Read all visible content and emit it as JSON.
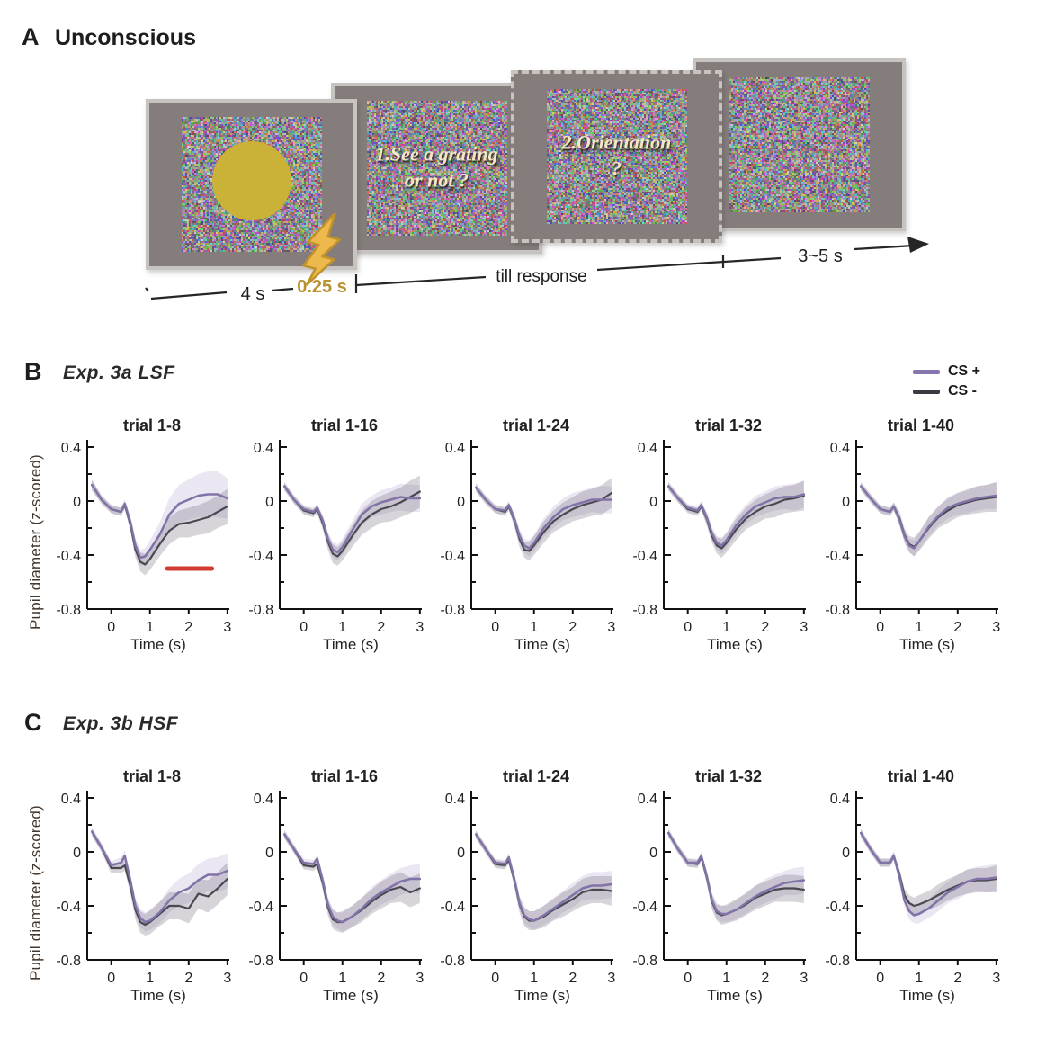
{
  "panel_a": {
    "label": "A",
    "title": "Unconscious",
    "screens": [
      {
        "id": "cs-stimulus",
        "content": "yellow-circle-on-noise"
      },
      {
        "id": "question-1",
        "line1": "1.See a grating",
        "line2": "or not ?"
      },
      {
        "id": "question-2",
        "line1": "2.Orientation",
        "line2": "?"
      },
      {
        "id": "mask-noise",
        "content": "noise-only"
      }
    ],
    "timeline": {
      "t_4s": "4 s",
      "t_025s": "0.25 s",
      "t_till": "till response",
      "t_35s": "3~5 s"
    },
    "colors": {
      "circle": "#c9b237",
      "bolt_fill": "#edb94d",
      "bolt_edge": "#c2922a",
      "gold_text": "#b8922e"
    }
  },
  "legend": {
    "items": [
      {
        "label": "CS +",
        "color": "#8576ad"
      },
      {
        "label": "CS -",
        "color": "#3c3a40"
      }
    ]
  },
  "panel_b": {
    "label": "B",
    "subtitle": "Exp. 3a  LSF"
  },
  "panel_c": {
    "label": "C",
    "subtitle": "Exp. 3b  HSF"
  },
  "chart_data": {
    "type": "line",
    "x_label": "Time (s)",
    "y_label": "Pupil diameter (z-scored)",
    "x": [
      -0.5,
      -0.25,
      0,
      0.25,
      0.35,
      0.5,
      0.625,
      0.75,
      0.875,
      1,
      1.25,
      1.5,
      1.75,
      2,
      2.25,
      2.5,
      2.75,
      3
    ],
    "xticks": [
      0,
      1,
      2,
      3
    ],
    "yticks": [
      0.4,
      0,
      -0.4,
      -0.8
    ],
    "yminor": [
      0.2,
      -0.2,
      -0.6
    ],
    "xlim": [
      -0.62,
      3.05
    ],
    "ylim": [
      -0.8,
      0.4
    ],
    "series_colors": {
      "cs_plus": "#8172a8",
      "cs_minus": "#4a4850",
      "cs_plus_band": "rgba(160,140,195,0.22)",
      "cs_minus_band": "rgba(110,105,118,0.28)",
      "sig_bar": "#d23c30"
    },
    "panels": [
      {
        "panel": "B",
        "experiment": "Exp. 3a LSF",
        "charts": [
          {
            "title": "trial 1-8",
            "cs_plus": [
              0.12,
              0.01,
              -0.06,
              -0.08,
              -0.02,
              -0.16,
              -0.33,
              -0.42,
              -0.41,
              -0.36,
              -0.25,
              -0.1,
              -0.02,
              0.01,
              0.04,
              0.05,
              0.05,
              0.02
            ],
            "cs_plus_band": [
              0.04,
              0.03,
              0.03,
              0.03,
              0.03,
              0.04,
              0.05,
              0.06,
              0.06,
              0.07,
              0.09,
              0.12,
              0.14,
              0.15,
              0.16,
              0.17,
              0.17,
              0.15
            ],
            "cs_minus": [
              0.12,
              0.01,
              -0.06,
              -0.08,
              -0.03,
              -0.18,
              -0.36,
              -0.45,
              -0.47,
              -0.43,
              -0.32,
              -0.22,
              -0.17,
              -0.16,
              -0.14,
              -0.12,
              -0.08,
              -0.04
            ],
            "cs_minus_band": [
              0.04,
              0.03,
              0.03,
              0.03,
              0.03,
              0.05,
              0.06,
              0.07,
              0.08,
              0.08,
              0.09,
              0.1,
              0.1,
              0.11,
              0.11,
              0.12,
              0.12,
              0.13
            ],
            "sig_bar": {
              "x1": 1.45,
              "x2": 2.6,
              "y": -0.5
            }
          },
          {
            "title": "trial 1-16",
            "cs_plus": [
              0.11,
              0.01,
              -0.06,
              -0.08,
              -0.05,
              -0.15,
              -0.28,
              -0.36,
              -0.38,
              -0.34,
              -0.22,
              -0.1,
              -0.04,
              -0.01,
              0.01,
              0.03,
              0.02,
              0.02
            ],
            "cs_plus_band": [
              0.03,
              0.03,
              0.03,
              0.03,
              0.03,
              0.04,
              0.05,
              0.06,
              0.06,
              0.06,
              0.07,
              0.08,
              0.08,
              0.09,
              0.09,
              0.1,
              0.1,
              0.1
            ],
            "cs_minus": [
              0.11,
              0.01,
              -0.07,
              -0.09,
              -0.06,
              -0.17,
              -0.3,
              -0.39,
              -0.41,
              -0.37,
              -0.26,
              -0.16,
              -0.1,
              -0.06,
              -0.04,
              -0.01,
              0.03,
              0.07
            ],
            "cs_minus_band": [
              0.03,
              0.03,
              0.03,
              0.03,
              0.03,
              0.05,
              0.06,
              0.07,
              0.07,
              0.07,
              0.08,
              0.09,
              0.1,
              0.1,
              0.11,
              0.11,
              0.12,
              0.12
            ]
          },
          {
            "title": "trial 1-24",
            "cs_plus": [
              0.1,
              0.01,
              -0.06,
              -0.07,
              -0.03,
              -0.14,
              -0.26,
              -0.33,
              -0.35,
              -0.31,
              -0.2,
              -0.12,
              -0.06,
              -0.03,
              -0.01,
              0.01,
              0.01,
              0.01
            ],
            "cs_plus_band": [
              0.03,
              0.03,
              0.03,
              0.03,
              0.03,
              0.04,
              0.05,
              0.05,
              0.06,
              0.06,
              0.07,
              0.08,
              0.08,
              0.09,
              0.09,
              0.09,
              0.1,
              0.1
            ],
            "cs_minus": [
              0.1,
              0.01,
              -0.06,
              -0.08,
              -0.04,
              -0.15,
              -0.28,
              -0.36,
              -0.37,
              -0.33,
              -0.23,
              -0.15,
              -0.1,
              -0.06,
              -0.03,
              -0.01,
              0.01,
              0.06
            ],
            "cs_minus_band": [
              0.03,
              0.03,
              0.03,
              0.03,
              0.03,
              0.05,
              0.06,
              0.06,
              0.07,
              0.07,
              0.08,
              0.08,
              0.09,
              0.09,
              0.1,
              0.1,
              0.11,
              0.11
            ]
          },
          {
            "title": "trial 1-32",
            "cs_plus": [
              0.11,
              0.02,
              -0.05,
              -0.07,
              -0.03,
              -0.13,
              -0.24,
              -0.31,
              -0.33,
              -0.29,
              -0.18,
              -0.1,
              -0.04,
              -0.01,
              0.02,
              0.03,
              0.03,
              0.05
            ],
            "cs_plus_band": [
              0.03,
              0.03,
              0.03,
              0.03,
              0.03,
              0.04,
              0.05,
              0.05,
              0.06,
              0.06,
              0.07,
              0.07,
              0.08,
              0.08,
              0.09,
              0.09,
              0.1,
              0.1
            ],
            "cs_minus": [
              0.11,
              0.02,
              -0.06,
              -0.08,
              -0.04,
              -0.14,
              -0.26,
              -0.33,
              -0.35,
              -0.31,
              -0.21,
              -0.13,
              -0.08,
              -0.04,
              -0.02,
              0.01,
              0.02,
              0.04
            ],
            "cs_minus_band": [
              0.03,
              0.03,
              0.03,
              0.03,
              0.03,
              0.05,
              0.05,
              0.06,
              0.07,
              0.07,
              0.08,
              0.08,
              0.09,
              0.09,
              0.1,
              0.1,
              0.1,
              0.11
            ]
          },
          {
            "title": "trial 1-40",
            "cs_plus": [
              0.11,
              0.02,
              -0.06,
              -0.08,
              -0.04,
              -0.14,
              -0.26,
              -0.33,
              -0.35,
              -0.3,
              -0.19,
              -0.11,
              -0.05,
              -0.02,
              0.0,
              0.02,
              0.03,
              0.04
            ],
            "cs_plus_band": [
              0.03,
              0.03,
              0.03,
              0.03,
              0.03,
              0.04,
              0.05,
              0.05,
              0.06,
              0.06,
              0.07,
              0.07,
              0.08,
              0.08,
              0.09,
              0.09,
              0.09,
              0.1
            ],
            "cs_minus": [
              0.11,
              0.02,
              -0.06,
              -0.08,
              -0.04,
              -0.13,
              -0.25,
              -0.32,
              -0.34,
              -0.3,
              -0.2,
              -0.12,
              -0.07,
              -0.03,
              -0.01,
              0.01,
              0.02,
              0.03
            ],
            "cs_minus_band": [
              0.03,
              0.03,
              0.03,
              0.03,
              0.03,
              0.05,
              0.05,
              0.06,
              0.07,
              0.07,
              0.08,
              0.08,
              0.09,
              0.09,
              0.09,
              0.1,
              0.1,
              0.11
            ]
          }
        ]
      },
      {
        "panel": "C",
        "experiment": "Exp. 3b HSF",
        "charts": [
          {
            "title": "trial 1-8",
            "cs_plus": [
              0.15,
              0.03,
              -0.1,
              -0.08,
              -0.03,
              -0.22,
              -0.4,
              -0.49,
              -0.52,
              -0.51,
              -0.45,
              -0.36,
              -0.3,
              -0.27,
              -0.21,
              -0.17,
              -0.17,
              -0.14
            ],
            "cs_plus_band": [
              0.03,
              0.03,
              0.03,
              0.04,
              0.04,
              0.05,
              0.06,
              0.07,
              0.07,
              0.07,
              0.08,
              0.09,
              0.1,
              0.11,
              0.12,
              0.12,
              0.13,
              0.13
            ],
            "cs_minus": [
              0.15,
              0.03,
              -0.12,
              -0.12,
              -0.1,
              -0.26,
              -0.43,
              -0.52,
              -0.54,
              -0.52,
              -0.46,
              -0.4,
              -0.4,
              -0.42,
              -0.31,
              -0.33,
              -0.27,
              -0.2
            ],
            "cs_minus_band": [
              0.03,
              0.03,
              0.04,
              0.04,
              0.04,
              0.06,
              0.07,
              0.08,
              0.08,
              0.09,
              0.09,
              0.1,
              0.1,
              0.11,
              0.11,
              0.12,
              0.12,
              0.12
            ]
          },
          {
            "title": "trial 1-16",
            "cs_plus": [
              0.13,
              0.02,
              -0.08,
              -0.09,
              -0.05,
              -0.22,
              -0.39,
              -0.48,
              -0.51,
              -0.52,
              -0.48,
              -0.42,
              -0.35,
              -0.3,
              -0.26,
              -0.22,
              -0.2,
              -0.2
            ],
            "cs_plus_band": [
              0.03,
              0.03,
              0.03,
              0.03,
              0.03,
              0.04,
              0.05,
              0.06,
              0.06,
              0.07,
              0.08,
              0.08,
              0.09,
              0.09,
              0.1,
              0.1,
              0.1,
              0.11
            ],
            "cs_minus": [
              0.13,
              0.02,
              -0.1,
              -0.11,
              -0.09,
              -0.24,
              -0.41,
              -0.5,
              -0.52,
              -0.52,
              -0.48,
              -0.43,
              -0.37,
              -0.32,
              -0.28,
              -0.26,
              -0.3,
              -0.27
            ],
            "cs_minus_band": [
              0.03,
              0.03,
              0.03,
              0.03,
              0.03,
              0.05,
              0.06,
              0.07,
              0.07,
              0.08,
              0.08,
              0.09,
              0.09,
              0.1,
              0.1,
              0.11,
              0.11,
              0.11
            ]
          },
          {
            "title": "trial 1-24",
            "cs_plus": [
              0.13,
              0.02,
              -0.08,
              -0.09,
              -0.04,
              -0.21,
              -0.38,
              -0.47,
              -0.5,
              -0.51,
              -0.47,
              -0.42,
              -0.37,
              -0.32,
              -0.27,
              -0.25,
              -0.25,
              -0.24
            ],
            "cs_plus_band": [
              0.03,
              0.03,
              0.03,
              0.03,
              0.03,
              0.04,
              0.05,
              0.06,
              0.06,
              0.07,
              0.07,
              0.08,
              0.08,
              0.09,
              0.09,
              0.1,
              0.1,
              0.1
            ],
            "cs_minus": [
              0.13,
              0.02,
              -0.09,
              -0.1,
              -0.06,
              -0.22,
              -0.39,
              -0.48,
              -0.51,
              -0.51,
              -0.48,
              -0.43,
              -0.39,
              -0.35,
              -0.3,
              -0.28,
              -0.28,
              -0.29
            ],
            "cs_minus_band": [
              0.03,
              0.03,
              0.03,
              0.03,
              0.03,
              0.05,
              0.06,
              0.07,
              0.07,
              0.07,
              0.08,
              0.08,
              0.09,
              0.09,
              0.1,
              0.1,
              0.1,
              0.11
            ]
          },
          {
            "title": "trial 1-32",
            "cs_plus": [
              0.14,
              0.02,
              -0.08,
              -0.08,
              -0.03,
              -0.19,
              -0.36,
              -0.44,
              -0.46,
              -0.46,
              -0.43,
              -0.38,
              -0.33,
              -0.29,
              -0.26,
              -0.23,
              -0.22,
              -0.21
            ],
            "cs_plus_band": [
              0.03,
              0.03,
              0.03,
              0.03,
              0.03,
              0.04,
              0.05,
              0.06,
              0.06,
              0.06,
              0.07,
              0.08,
              0.08,
              0.09,
              0.09,
              0.09,
              0.1,
              0.1
            ],
            "cs_minus": [
              0.14,
              0.02,
              -0.08,
              -0.09,
              -0.04,
              -0.2,
              -0.37,
              -0.45,
              -0.47,
              -0.46,
              -0.43,
              -0.39,
              -0.34,
              -0.31,
              -0.28,
              -0.27,
              -0.27,
              -0.28
            ],
            "cs_minus_band": [
              0.03,
              0.03,
              0.03,
              0.03,
              0.03,
              0.05,
              0.06,
              0.06,
              0.07,
              0.07,
              0.08,
              0.08,
              0.09,
              0.09,
              0.09,
              0.1,
              0.1,
              0.1
            ]
          },
          {
            "title": "trial 1-40",
            "cs_plus": [
              0.14,
              0.02,
              -0.08,
              -0.08,
              -0.03,
              -0.19,
              -0.36,
              -0.44,
              -0.47,
              -0.46,
              -0.42,
              -0.36,
              -0.3,
              -0.26,
              -0.22,
              -0.2,
              -0.2,
              -0.19
            ],
            "cs_plus_band": [
              0.03,
              0.03,
              0.03,
              0.03,
              0.03,
              0.04,
              0.05,
              0.06,
              0.06,
              0.07,
              0.07,
              0.08,
              0.08,
              0.09,
              0.09,
              0.09,
              0.1,
              0.1
            ],
            "cs_minus": [
              0.14,
              0.02,
              -0.08,
              -0.08,
              -0.03,
              -0.17,
              -0.32,
              -0.38,
              -0.4,
              -0.39,
              -0.36,
              -0.32,
              -0.28,
              -0.25,
              -0.22,
              -0.21,
              -0.21,
              -0.2
            ],
            "cs_minus_band": [
              0.03,
              0.03,
              0.03,
              0.03,
              0.03,
              0.04,
              0.05,
              0.06,
              0.06,
              0.07,
              0.07,
              0.08,
              0.08,
              0.08,
              0.09,
              0.09,
              0.09,
              0.1
            ]
          }
        ]
      }
    ]
  }
}
